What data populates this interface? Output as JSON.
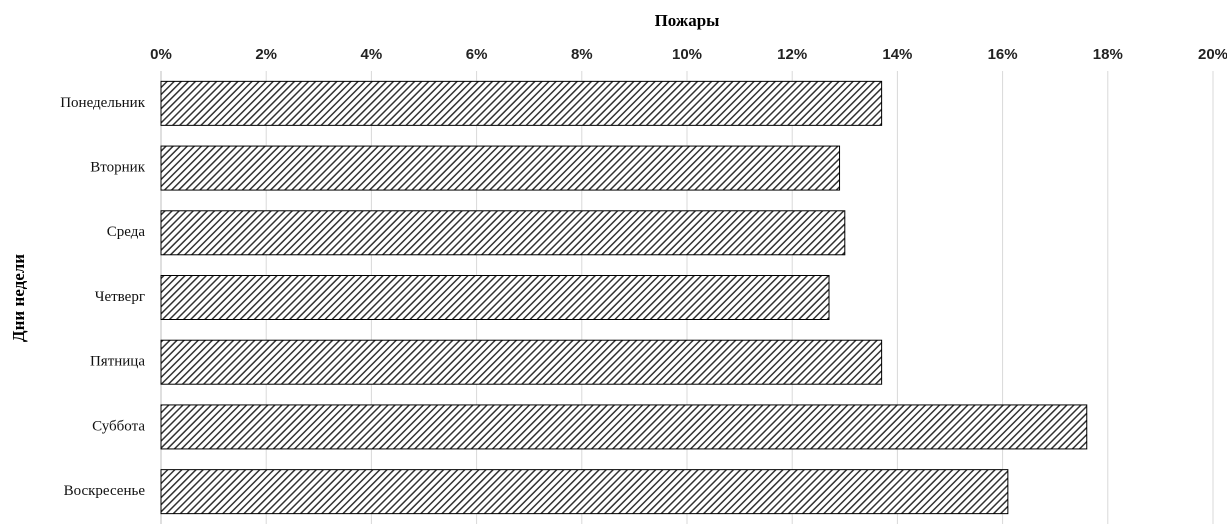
{
  "chart_data": {
    "type": "bar",
    "orientation": "horizontal",
    "title": "Пожары",
    "y_label": "Дни недели",
    "categories": [
      "Понедельник",
      "Вторник",
      "Среда",
      "Четверг",
      "Пятница",
      "Суббота",
      "Воскресенье"
    ],
    "values": [
      13.7,
      12.9,
      13.0,
      12.7,
      13.7,
      17.6,
      16.1
    ],
    "color": "#333333",
    "pattern": "hatch",
    "xlim": [
      0,
      20
    ],
    "xticks": [
      {
        "value": 0,
        "label": "0%"
      },
      {
        "value": 2,
        "label": "2%"
      },
      {
        "value": 4,
        "label": "4%"
      },
      {
        "value": 6,
        "label": "6%"
      },
      {
        "value": 8,
        "label": "8%"
      },
      {
        "value": 10,
        "label": "10%"
      },
      {
        "value": 12,
        "label": "12%"
      },
      {
        "value": 14,
        "label": "14%"
      },
      {
        "value": 16,
        "label": "16%"
      },
      {
        "value": 18,
        "label": "18%"
      },
      {
        "value": 20,
        "label": "20%"
      }
    ],
    "grid": true
  }
}
